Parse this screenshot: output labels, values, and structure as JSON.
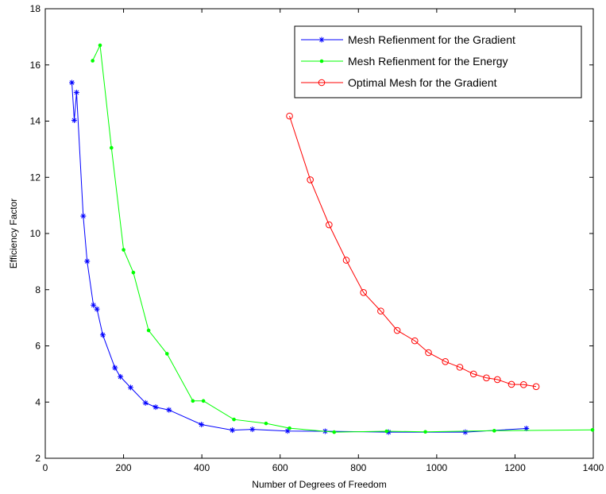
{
  "chart_data": {
    "type": "line",
    "title": "",
    "xlabel": "Number of Degrees of Freedom",
    "ylabel": "Efficiency Factor",
    "xlim": [
      0,
      1400
    ],
    "ylim": [
      2,
      18
    ],
    "xticks": [
      0,
      200,
      400,
      600,
      800,
      1000,
      1200,
      1400
    ],
    "yticks": [
      2,
      4,
      6,
      8,
      10,
      12,
      14,
      16,
      18
    ],
    "grid": false,
    "legend_position": "top-right",
    "series": [
      {
        "name": "Mesh Refienment for the Gradient",
        "color": "#0000ff",
        "marker": "asterisk",
        "x": [
          68,
          74,
          80,
          97,
          107,
          123,
          132,
          147,
          178,
          192,
          218,
          256,
          282,
          316,
          399,
          478,
          529,
          619,
          715,
          877,
          1073,
          1229
        ],
        "y": [
          15.37,
          14.03,
          15.02,
          10.62,
          9.01,
          7.45,
          7.31,
          6.39,
          5.22,
          4.9,
          4.52,
          3.97,
          3.82,
          3.72,
          3.2,
          3.0,
          3.03,
          2.97,
          2.96,
          2.93,
          2.93,
          3.06
        ]
      },
      {
        "name": "Mesh Refienment for the Energy",
        "color": "#00ff00",
        "marker": "dot",
        "x": [
          121,
          140,
          169,
          200,
          225,
          264,
          311,
          377,
          404,
          482,
          564,
          624,
          738,
          872,
          971,
          1147,
          1398
        ],
        "y": [
          16.15,
          16.7,
          13.05,
          9.42,
          8.61,
          6.55,
          5.72,
          4.04,
          4.04,
          3.38,
          3.24,
          3.07,
          2.93,
          2.96,
          2.94,
          2.98,
          3.01
        ]
      },
      {
        "name": "Optimal Mesh for the Gradient",
        "color": "#ff0000",
        "marker": "circle",
        "x": [
          624,
          677,
          725,
          769,
          813,
          857,
          899,
          944,
          979,
          1022,
          1059,
          1094,
          1127,
          1155,
          1191,
          1222,
          1254
        ],
        "y": [
          14.18,
          11.91,
          10.31,
          9.05,
          7.9,
          7.24,
          6.55,
          6.18,
          5.76,
          5.44,
          5.24,
          5.0,
          4.86,
          4.8,
          4.63,
          4.62,
          4.55
        ]
      }
    ]
  }
}
